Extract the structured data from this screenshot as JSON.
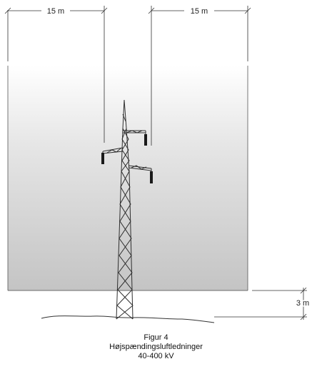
{
  "dimensions": {
    "left_width": "15 m",
    "right_width": "15 m",
    "ground_clearance": "3 m"
  },
  "caption": {
    "line1": "Figur 4",
    "line2": "Højspændingsluftledninger",
    "line3": "40-400 kV"
  },
  "colors": {
    "zone_top": "#ffffff",
    "zone_bottom": "#c4c4c4",
    "lines": "#3a3a3a"
  }
}
